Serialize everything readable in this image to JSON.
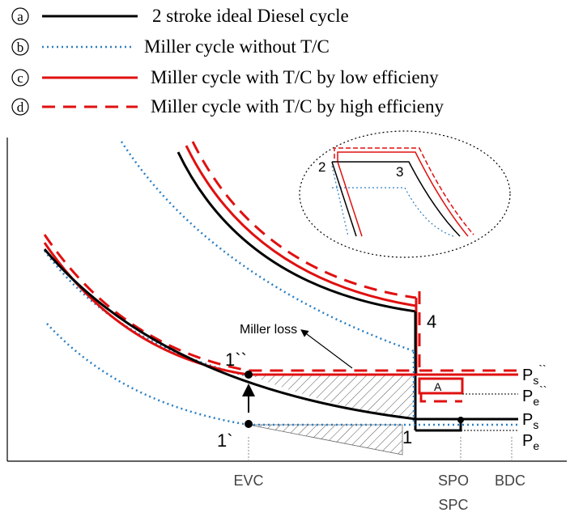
{
  "legend": [
    {
      "marker": "a",
      "label": "2 stroke ideal Diesel cycle",
      "color": "#000000",
      "dash": "solid"
    },
    {
      "marker": "b",
      "label": "Miller cycle without T/C",
      "color": "#2a7fc4",
      "dash": "dotted"
    },
    {
      "marker": "c",
      "label": "Miller cycle with T/C by low efficieny",
      "color": "#e01010",
      "dash": "solid"
    },
    {
      "marker": "d",
      "label": "Miller cycle  with T/C by high efficieny",
      "color": "#e01010",
      "dash": "dashed"
    }
  ],
  "point_labels": {
    "p2": "2",
    "p3": "3",
    "p4": "4",
    "p1": "1",
    "p1_prime": "1`",
    "p1_double_prime": "1``",
    "area_a": "A"
  },
  "annotations": {
    "miller_loss": "Miller loss"
  },
  "pressure_labels": {
    "ps_double": {
      "base": "P",
      "sub": "s",
      "sup": "``"
    },
    "pe_double": {
      "base": "P",
      "sub": "e",
      "sup": "``"
    },
    "ps": {
      "base": "P",
      "sub": "s",
      "sup": ""
    },
    "pe": {
      "base": "P",
      "sub": "e",
      "sup": ""
    }
  },
  "x_labels": {
    "evc": "EVC",
    "spo": "SPO",
    "spc": "SPC",
    "bdc": "BDC"
  }
}
